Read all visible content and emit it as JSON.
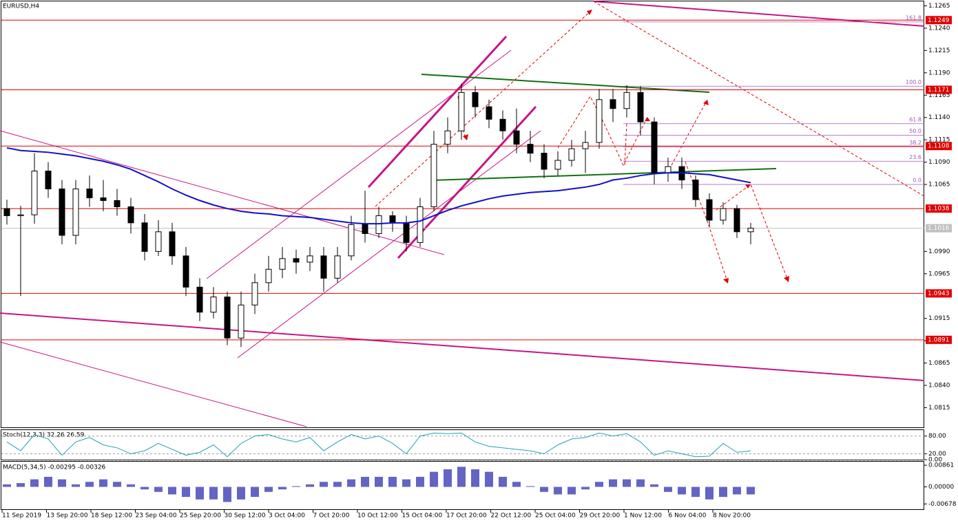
{
  "chart_data": [
    {
      "type": "candlestick",
      "title": "EURUSD,H4",
      "ylim": [
        1.0793,
        1.127
      ],
      "yticks": [
        1.1265,
        {
          "value": 1.124,
          "label": "1.1240"
        },
        1.1215,
        {
          "value": 1.119,
          "label": "1.1190"
        },
        1.1165,
        {
          "value": 1.114,
          "label": "1.1140"
        },
        1.1115,
        {
          "value": 1.109,
          "label": "1.1090"
        },
        1.1065,
        {
          "value": 1.099,
          "label": "1.0990"
        },
        1.0965,
        1.0915,
        {
          "value": 1.089,
          "label": "1.0890"
        },
        1.0865,
        {
          "value": 1.084,
          "label": "1.0840"
        },
        1.0815
      ],
      "x_axis_labels": [
        "11 Sep 2019",
        "13 Sep 20:00",
        "18 Sep 12:00",
        "23 Sep 04:00",
        "25 Sep 20:00",
        "30 Sep 12:00",
        "3 Oct 04:00",
        "7 Oct 20:00",
        "10 Oct 12:00",
        "15 Oct 04:00",
        "17 Oct 20:00",
        "22 Oct 12:00",
        "25 Oct 04:00",
        "29 Oct 20:00",
        "1 Nov 12:00",
        "6 Nov 04:00",
        "8 Nov 20:00"
      ],
      "open": [
        1.1038,
        1.103,
        1.1031,
        1.108,
        1.106,
        1.1008,
        1.106,
        1.105,
        1.1047,
        1.104,
        1.1022,
        1.099,
        1.1012,
        1.0985,
        1.095,
        1.0922,
        1.0939,
        1.0893,
        1.093,
        1.0955,
        1.097,
        1.0982,
        1.0978,
        1.0985,
        1.096,
        1.0985,
        1.102,
        1.101,
        1.103,
        1.1022,
        1.1,
        1.104,
        1.111,
        1.1125,
        1.1168,
        1.1152,
        1.1138,
        1.1125,
        1.111,
        1.11,
        1.1082,
        1.1092,
        1.1105,
        1.1112,
        1.116,
        1.115,
        1.1168,
        1.1135,
        1.1078,
        1.1085,
        1.107,
        1.1048,
        1.1025,
        1.1038,
        1.1012
      ],
      "high": [
        1.1048,
        1.1041,
        1.11,
        1.109,
        1.107,
        1.107,
        1.1075,
        1.107,
        1.106,
        1.105,
        1.1032,
        1.1025,
        1.1022,
        1.0995,
        1.096,
        1.095,
        1.0945,
        1.0945,
        1.0965,
        1.0985,
        1.0995,
        1.0992,
        1.0995,
        1.0995,
        1.0995,
        1.103,
        1.1058,
        1.104,
        1.1035,
        1.103,
        1.105,
        1.1125,
        1.114,
        1.1178,
        1.1175,
        1.116,
        1.1148,
        1.115,
        1.1125,
        1.111,
        1.1102,
        1.1115,
        1.1125,
        1.1172,
        1.1172,
        1.1176,
        1.1175,
        1.114,
        1.1095,
        1.1095,
        1.1075,
        1.1055,
        1.1045,
        1.1042,
        1.1022
      ],
      "low": [
        1.102,
        1.094,
        1.1021,
        1.105,
        1.0998,
        1.0998,
        1.104,
        1.1035,
        1.103,
        1.101,
        1.098,
        1.0985,
        1.0975,
        1.094,
        1.0912,
        1.0915,
        1.0885,
        1.0883,
        1.092,
        1.0945,
        1.096,
        1.0965,
        1.0968,
        1.0945,
        1.0955,
        1.098,
        1.1,
        1.1005,
        1.1012,
        1.099,
        1.0995,
        1.1035,
        1.11,
        1.1115,
        1.114,
        1.1128,
        1.1115,
        1.11,
        1.109,
        1.1072,
        1.1075,
        1.1085,
        1.1078,
        1.1105,
        1.1135,
        1.114,
        1.112,
        1.1065,
        1.1068,
        1.106,
        1.104,
        1.1018,
        1.102,
        1.1005,
        1.0998
      ],
      "close": [
        1.103,
        1.1031,
        1.108,
        1.106,
        1.1008,
        1.106,
        1.105,
        1.1047,
        1.104,
        1.1022,
        1.099,
        1.1012,
        1.0985,
        1.095,
        1.0922,
        1.0939,
        1.0893,
        1.093,
        1.0955,
        1.097,
        1.0982,
        1.0978,
        1.0985,
        1.096,
        1.0985,
        1.102,
        1.101,
        1.103,
        1.1022,
        1.1,
        1.104,
        1.111,
        1.1125,
        1.1168,
        1.1152,
        1.1138,
        1.1125,
        1.111,
        1.11,
        1.1082,
        1.1092,
        1.1105,
        1.1112,
        1.116,
        1.115,
        1.1168,
        1.1135,
        1.1078,
        1.1085,
        1.107,
        1.1048,
        1.1025,
        1.1038,
        1.1012,
        1.1016
      ],
      "moving_average": {
        "color": "#1010c8",
        "values": [
          1.1106,
          1.1103,
          1.1102,
          1.1101,
          1.1099,
          1.1097,
          1.1094,
          1.1091,
          1.1087,
          1.1082,
          1.1075,
          1.1068,
          1.106,
          1.1053,
          1.1047,
          1.1042,
          1.1038,
          1.1035,
          1.1033,
          1.1032,
          1.103,
          1.1029,
          1.1028,
          1.1026,
          1.1024,
          1.1022,
          1.1021,
          1.1021,
          1.1022,
          1.1022,
          1.1024,
          1.103,
          1.1036,
          1.1041,
          1.1045,
          1.1049,
          1.1052,
          1.1054,
          1.1056,
          1.1057,
          1.1058,
          1.106,
          1.1062,
          1.1065,
          1.107,
          1.1072,
          1.1075,
          1.1077,
          1.1078,
          1.1078,
          1.1077,
          1.1076,
          1.1073,
          1.107,
          1.1067
        ]
      },
      "levels": [
        1.1249,
        1.1171,
        1.1108,
        1.1038,
        1.0943,
        1.0891
      ],
      "level_color": "#e00000",
      "current_price": 1.1016,
      "fib_levels": [
        {
          "label": "161.8",
          "price": 1.1247
        },
        {
          "label": "100.0",
          "price": 1.1175
        },
        {
          "label": "61.8",
          "price": 1.1133
        },
        {
          "label": "50.0",
          "price": 1.112
        },
        {
          "label": "38.2",
          "price": 1.1107
        },
        {
          "label": "23.6",
          "price": 1.1091
        },
        {
          "label": "0.0",
          "price": 1.1065
        }
      ]
    },
    {
      "type": "line",
      "title": "Stoch(12,3,3) 32.26 26.59",
      "ylim": [
        0,
        100
      ],
      "yticks": [
        {
          "value": 80,
          "label": "80.00"
        },
        {
          "value": 20,
          "label": "20.00"
        },
        {
          "value": 0,
          "label": "0.00"
        }
      ],
      "color": "#20a0b0",
      "values": [
        60,
        30,
        85,
        70,
        15,
        60,
        75,
        50,
        40,
        20,
        30,
        55,
        35,
        15,
        25,
        50,
        10,
        55,
        80,
        85,
        70,
        60,
        75,
        30,
        60,
        85,
        70,
        80,
        55,
        20,
        80,
        90,
        88,
        90,
        60,
        45,
        40,
        35,
        30,
        20,
        50,
        70,
        75,
        90,
        80,
        88,
        60,
        15,
        30,
        20,
        10,
        12,
        55,
        25,
        30
      ]
    },
    {
      "type": "bar",
      "title": "MACD(5,34,5) -0.00295 -0.00326",
      "ylim": [
        -0.0089,
        0.01
      ],
      "yticks": [
        0.00861,
        {
          "value": 0,
          "label": "0.00000"
        },
        -0.00678
      ],
      "color": "#3030b0",
      "values": [
        0.001,
        0.0015,
        0.003,
        0.004,
        0.003,
        0.001,
        0.002,
        0.003,
        0.002,
        0.001,
        -0.001,
        -0.002,
        -0.003,
        -0.004,
        -0.005,
        -0.005,
        -0.006,
        -0.005,
        -0.004,
        -0.002,
        -0.001,
        0.0003,
        0.001,
        0.002,
        0.002,
        0.003,
        0.004,
        0.004,
        0.004,
        0.003,
        0.004,
        0.006,
        0.007,
        0.008,
        0.007,
        0.006,
        0.004,
        0.002,
        0.0003,
        -0.002,
        -0.003,
        -0.003,
        -0.001,
        0.002,
        0.003,
        0.003,
        0.003,
        0.001,
        -0.002,
        -0.003,
        -0.004,
        -0.005,
        -0.004,
        -0.003,
        -0.003
      ]
    }
  ]
}
